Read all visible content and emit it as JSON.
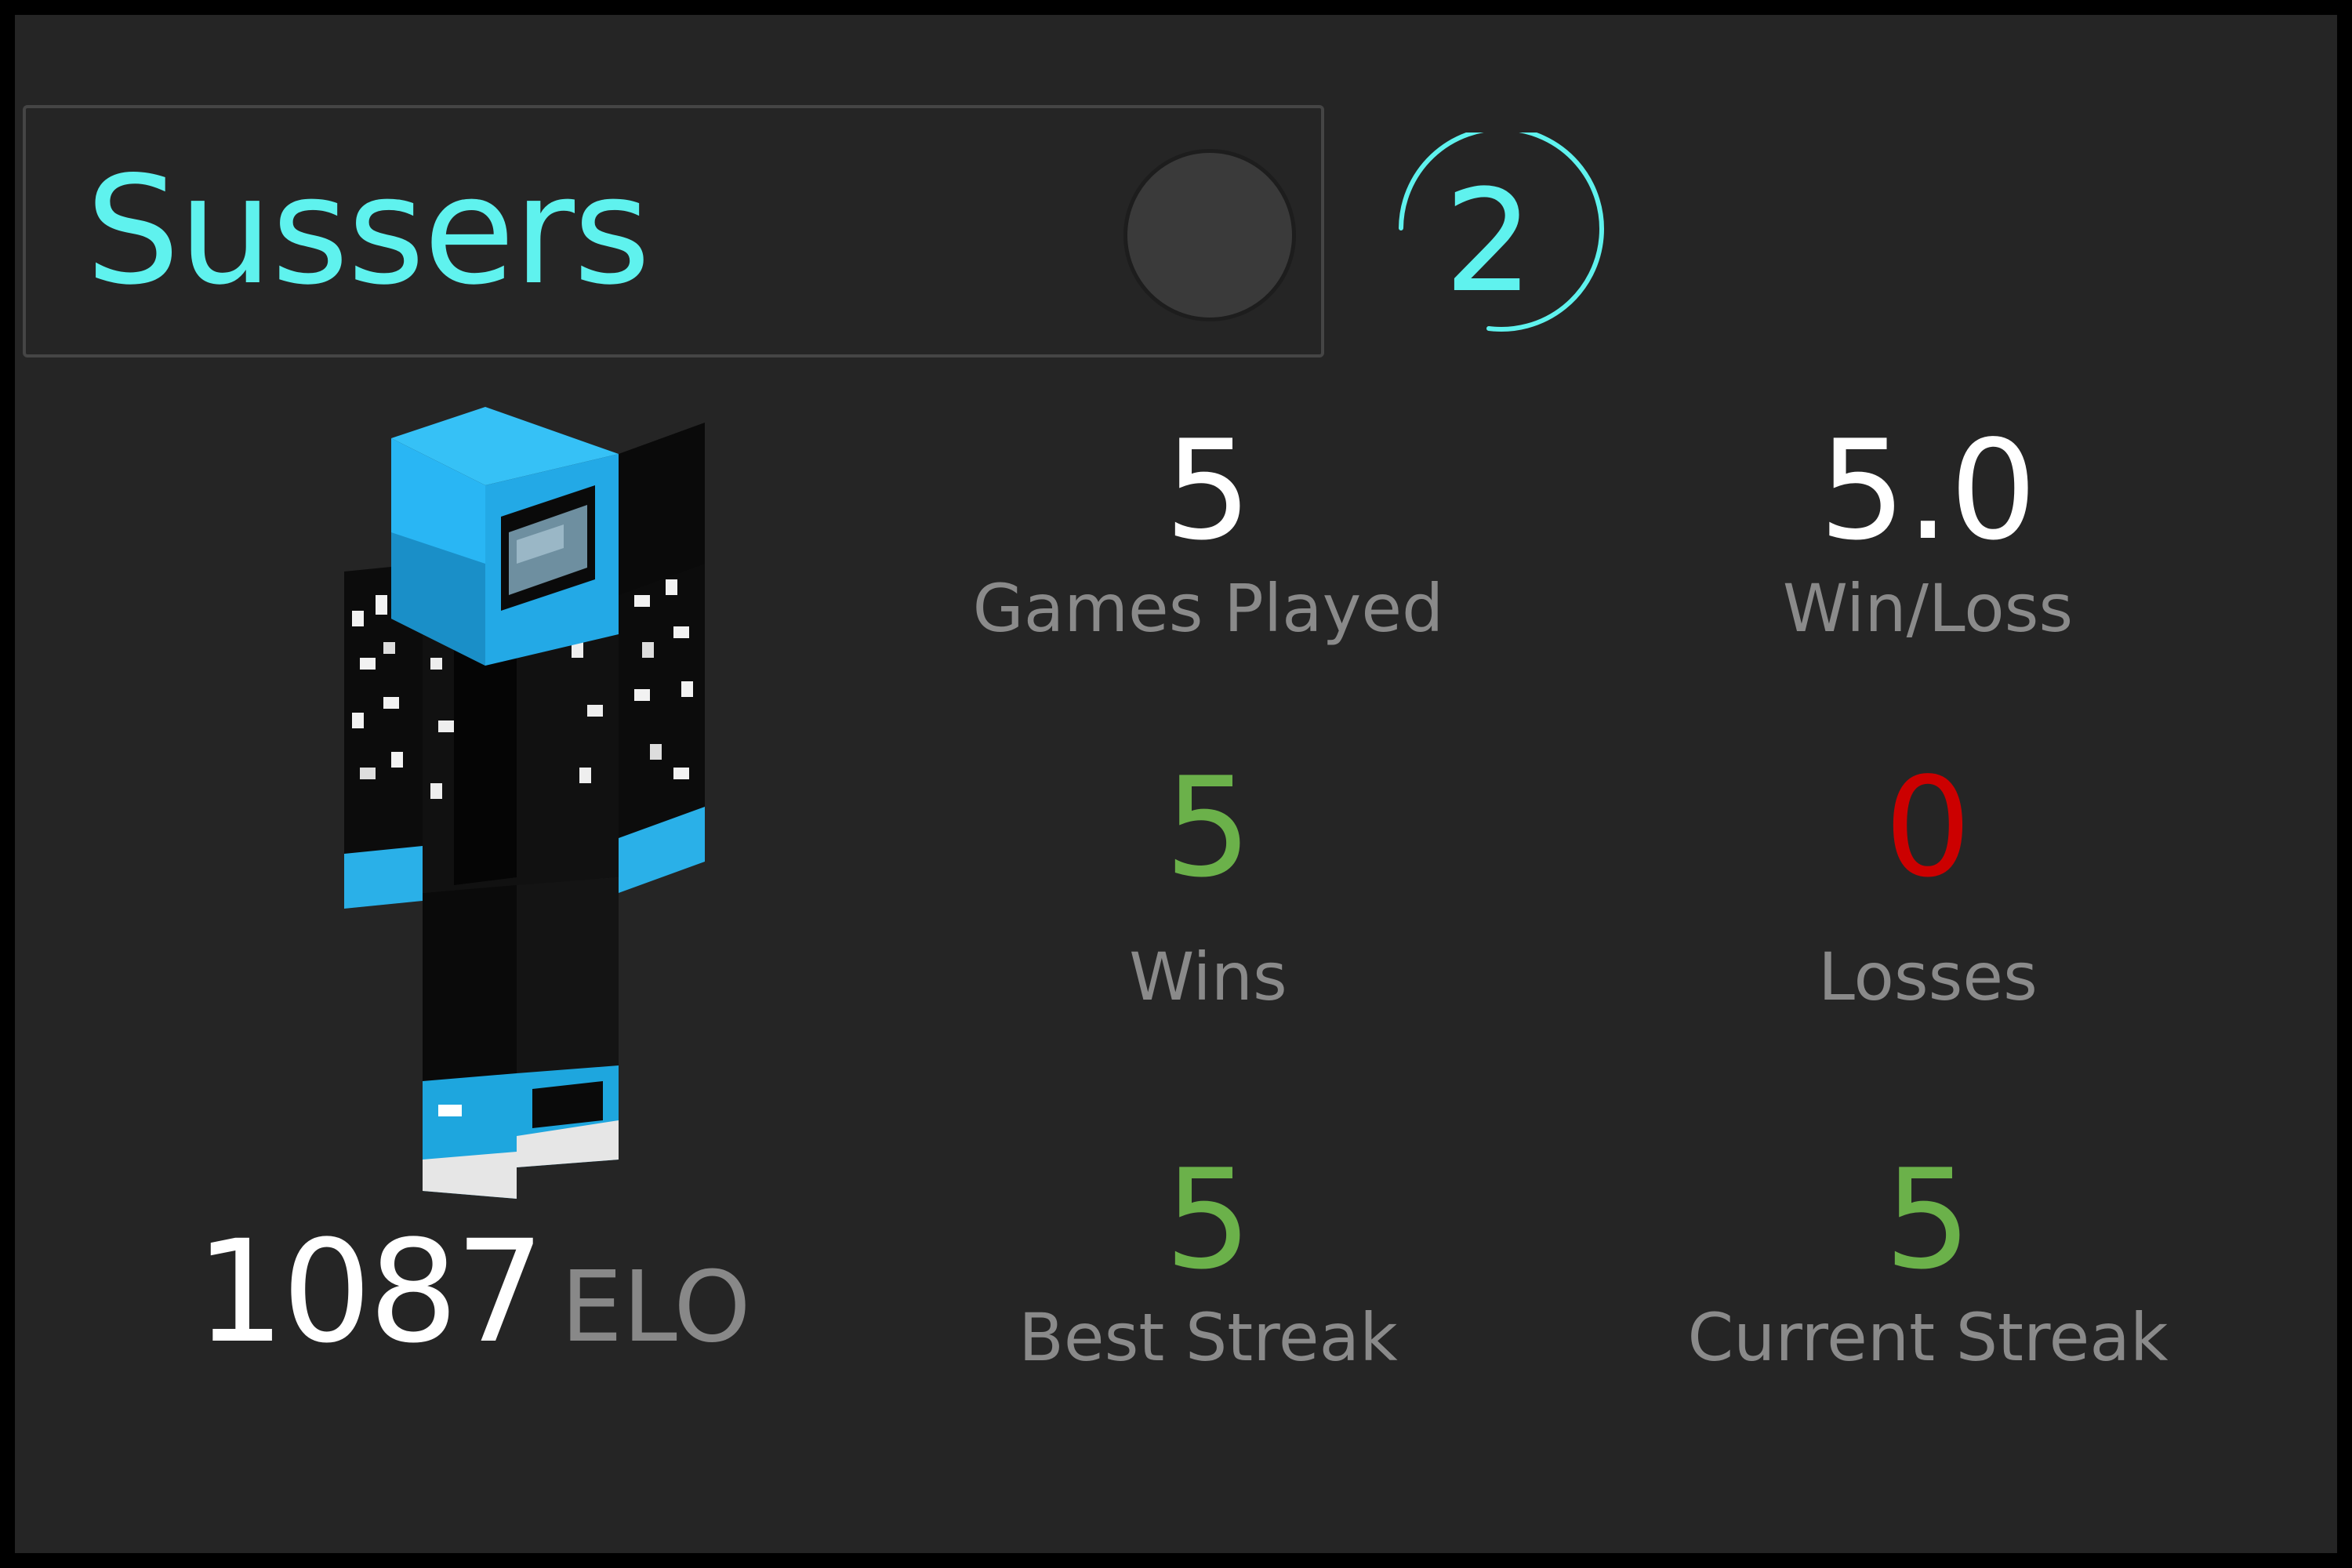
{
  "player": {
    "name": "Sussers",
    "name_color": "#5ff2ee",
    "status_dot_color": "#3a3a3a",
    "avatar_icon": "minecraft-skin-icon"
  },
  "rank": {
    "value": "2",
    "color": "#5ff2ee"
  },
  "elo": {
    "value": "1087",
    "unit": "ELO"
  },
  "stats": [
    {
      "label": "Games Played",
      "value": "5",
      "color": "#ffffff"
    },
    {
      "label": "Win/Loss",
      "value": "5.0",
      "color": "#ffffff"
    },
    {
      "label": "Wins",
      "value": "5",
      "color": "#6bb14a"
    },
    {
      "label": "Losses",
      "value": "0",
      "color": "#cc0000"
    },
    {
      "label": "Best Streak",
      "value": "5",
      "color": "#6bb14a"
    },
    {
      "label": "Current Streak",
      "value": "5",
      "color": "#6bb14a"
    }
  ],
  "colors": {
    "background": "#252525",
    "label": "#8a8a8a",
    "accent_cyan": "#5ff2ee",
    "win_green": "#6bb14a",
    "loss_red": "#cc0000"
  }
}
